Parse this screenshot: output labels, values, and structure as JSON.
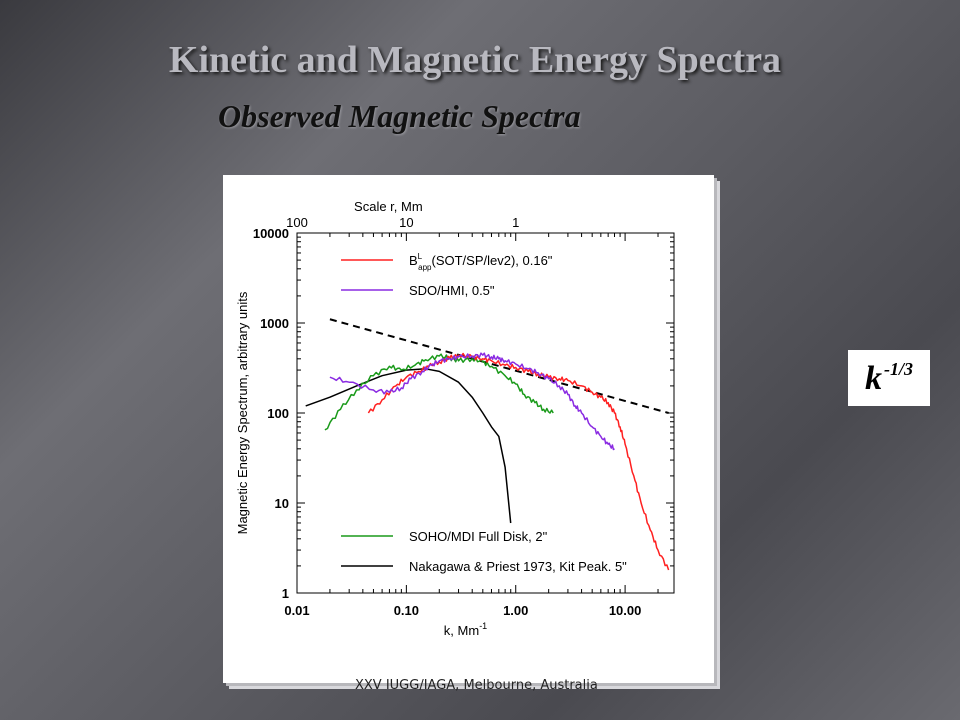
{
  "slide": {
    "title": "Kinetic and Magnetic Energy Spectra",
    "subtitle": "Observed Magnetic Spectra",
    "annotation": {
      "base": "k",
      "exponent": "-1/3"
    },
    "footer": "XXV IUGG/IAGA, Melbourne, Australia"
  },
  "chart_data": {
    "type": "line",
    "title": "",
    "xlabel": "k, Mm",
    "xlabel_sup": "-1",
    "ylabel": "Magnetic Energy Spectrum, arbitrary units",
    "top_axis_label": "Scale r,  Mm",
    "x_scale": "log",
    "y_scale": "log",
    "xlim": [
      0.01,
      28
    ],
    "ylim": [
      1,
      10000
    ],
    "x_ticks": [
      0.01,
      0.1,
      1,
      10
    ],
    "x_tick_labels": [
      "0.01",
      "0.10",
      "1.00",
      "10.00"
    ],
    "y_ticks": [
      1,
      10,
      100,
      1000,
      10000
    ],
    "y_tick_labels": [
      "1",
      "10",
      "100",
      "1000",
      "10000"
    ],
    "top_ticks": [
      100,
      10,
      1
    ],
    "top_tick_labels": [
      "100",
      "10",
      "1"
    ],
    "grid": false,
    "legend_placement": "inside",
    "series": [
      {
        "name": "B",
        "name_sup": "L",
        "name_sub": "app",
        "name_rest": "(SOT/SP/lev2), 0.16\"",
        "color": "#ff2020",
        "x": [
          0.045,
          0.06,
          0.08,
          0.1,
          0.13,
          0.16,
          0.2,
          0.25,
          0.3,
          0.4,
          0.5,
          0.6,
          0.8,
          1.0,
          1.3,
          1.6,
          2.0,
          2.5,
          3.0,
          4.0,
          5.0,
          6.0,
          7.0,
          8.0,
          9.0,
          10.0,
          12.0,
          14.0,
          17.0,
          20.0,
          25.0
        ],
        "y": [
          100,
          140,
          200,
          250,
          290,
          330,
          370,
          410,
          440,
          420,
          400,
          380,
          340,
          320,
          290,
          270,
          250,
          240,
          230,
          200,
          170,
          150,
          130,
          100,
          70,
          45,
          20,
          10,
          5,
          3,
          1.8
        ]
      },
      {
        "name": "SDO/HMI, 0.5\"",
        "color": "#8a2be2",
        "x": [
          0.02,
          0.03,
          0.05,
          0.07,
          0.09,
          0.11,
          0.14,
          0.17,
          0.2,
          0.25,
          0.3,
          0.4,
          0.5,
          0.6,
          0.7,
          0.8,
          1.0,
          1.3,
          1.6,
          2.0,
          2.5,
          3.0,
          3.5,
          4.0,
          5.0,
          6.0,
          7.0,
          8.0
        ],
        "y": [
          250,
          220,
          180,
          170,
          190,
          240,
          290,
          340,
          380,
          400,
          420,
          430,
          440,
          420,
          400,
          380,
          350,
          310,
          280,
          240,
          200,
          160,
          120,
          100,
          70,
          55,
          45,
          40
        ]
      },
      {
        "name": "SOHO/MDI Full Disk, 2\"",
        "color": "#1a9a1a",
        "x": [
          0.018,
          0.025,
          0.035,
          0.05,
          0.07,
          0.09,
          0.12,
          0.15,
          0.2,
          0.25,
          0.3,
          0.4,
          0.5,
          0.6,
          0.8,
          1.0,
          1.2,
          1.5,
          1.8,
          2.2
        ],
        "y": [
          65,
          110,
          180,
          260,
          330,
          300,
          340,
          390,
          430,
          410,
          380,
          400,
          370,
          330,
          260,
          210,
          160,
          130,
          110,
          100
        ]
      },
      {
        "name": "Nakagawa & Priest 1973, Kit Peak. 5\"",
        "color": "#000000",
        "x": [
          0.012,
          0.02,
          0.035,
          0.06,
          0.1,
          0.15,
          0.2,
          0.3,
          0.4,
          0.5,
          0.6,
          0.7,
          0.8,
          0.9
        ],
        "y": [
          120,
          150,
          200,
          260,
          300,
          310,
          290,
          220,
          150,
          100,
          70,
          55,
          25,
          6
        ]
      }
    ],
    "reference_line": {
      "label": "k-1/3",
      "style": "dashed",
      "x": [
        0.02,
        25
      ],
      "y": [
        1100,
        100
      ]
    }
  }
}
